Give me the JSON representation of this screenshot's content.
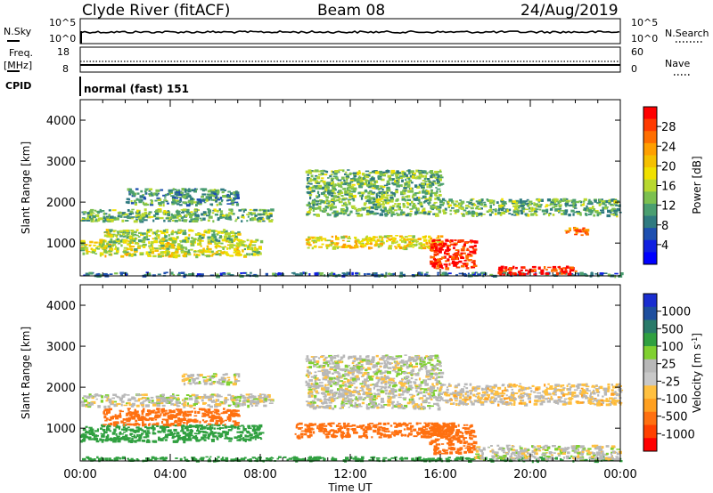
{
  "header": {
    "station": "Clyde River (fitACF)",
    "beam": "Beam 08",
    "date": "24/Aug/2019"
  },
  "panels": {
    "nsky": {
      "left_label": "N.Sky",
      "left_ticks": [
        "10^5",
        "10^0"
      ],
      "right_label": "N.Search",
      "right_ticks": [
        "10^5",
        "10^0"
      ]
    },
    "freq": {
      "left_label_1": "Freq.",
      "left_label_2": "[MHz]",
      "left_ticks": [
        "18",
        "8"
      ],
      "right_label": "Nave",
      "right_ticks": [
        "60",
        "0"
      ]
    },
    "cpid": {
      "label": "CPID",
      "mode": "normal (fast) 151"
    }
  },
  "colorbars": {
    "power": {
      "title": "Power [dB]",
      "ticks": [
        "28",
        "24",
        "20",
        "16",
        "12",
        "8",
        "4"
      ],
      "colors": [
        "#ff0000",
        "#ff3a00",
        "#ff6e00",
        "#ff9f00",
        "#f5c000",
        "#f0e000",
        "#b8d830",
        "#7cc050",
        "#4a9e70",
        "#2f7a80",
        "#1e4fb0",
        "#1020e0",
        "#0000ff"
      ]
    },
    "velocity": {
      "title": "Velocity [m s",
      "title_sup": "-1",
      "title_end": "]",
      "ticks": [
        "1000",
        "500",
        "100",
        "25",
        "-25",
        "-100",
        "-500",
        "-1000"
      ],
      "colors": [
        "#1a2ed0",
        "#1e4f9e",
        "#2a7a6a",
        "#30a040",
        "#80d030",
        "#b8b8b8",
        "#c8c8c8",
        "#ffc040",
        "#ffa020",
        "#ff7010",
        "#ff4000",
        "#ff0000"
      ]
    }
  },
  "chart_data": [
    {
      "type": "heatmap",
      "title": "",
      "ylabel": "Slant Range [km]",
      "xlabel": "",
      "yticks": [
        "1000",
        "2000",
        "3000",
        "4000"
      ],
      "ylim": [
        200,
        4500
      ],
      "xlim_hours": [
        0,
        24
      ],
      "colorbar": "Power [dB]",
      "regions": [
        {
          "x": [
            0,
            24
          ],
          "y": [
            220,
            300
          ],
          "value": 8
        },
        {
          "x": [
            0,
            8
          ],
          "y": [
            700,
            1100
          ],
          "value": 16
        },
        {
          "x": [
            1,
            7
          ],
          "y": [
            1050,
            1350
          ],
          "value": 14
        },
        {
          "x": [
            0,
            8.5
          ],
          "y": [
            1550,
            1850
          ],
          "value": 12
        },
        {
          "x": [
            2,
            7
          ],
          "y": [
            1950,
            2350
          ],
          "value": 10
        },
        {
          "x": [
            10,
            16
          ],
          "y": [
            900,
            1200
          ],
          "value": 18
        },
        {
          "x": [
            10,
            16
          ],
          "y": [
            1700,
            2800
          ],
          "value": 12
        },
        {
          "x": [
            15.5,
            17.5
          ],
          "y": [
            400,
            1100
          ],
          "value": 28
        },
        {
          "x": [
            18.5,
            22
          ],
          "y": [
            250,
            450
          ],
          "value": 28
        },
        {
          "x": [
            21.5,
            22.5
          ],
          "y": [
            1200,
            1400
          ],
          "value": 24
        },
        {
          "x": [
            16,
            24
          ],
          "y": [
            1700,
            2100
          ],
          "value": 12
        }
      ]
    },
    {
      "type": "heatmap",
      "title": "",
      "ylabel": "Slant Range [km]",
      "xlabel": "Time UT",
      "yticks": [
        "1000",
        "2000",
        "3000",
        "4000"
      ],
      "xticks": [
        "00:00",
        "04:00",
        "08:00",
        "12:00",
        "16:00",
        "20:00",
        "00:00"
      ],
      "ylim": [
        200,
        4500
      ],
      "xlim_hours": [
        0,
        24
      ],
      "colorbar": "Velocity [m s^-1]",
      "regions": [
        {
          "x": [
            0,
            24
          ],
          "y": [
            220,
            320
          ],
          "value": 100
        },
        {
          "x": [
            0,
            8
          ],
          "y": [
            700,
            1100
          ],
          "value": 100
        },
        {
          "x": [
            1,
            7
          ],
          "y": [
            1100,
            1500
          ],
          "value": -500
        },
        {
          "x": [
            0,
            8.5
          ],
          "y": [
            1550,
            1850
          ],
          "value": 0
        },
        {
          "x": [
            4.5,
            7
          ],
          "y": [
            2100,
            2350
          ],
          "value": 0
        },
        {
          "x": [
            9.5,
            16.5
          ],
          "y": [
            800,
            1150
          ],
          "value": -500
        },
        {
          "x": [
            10,
            16
          ],
          "y": [
            1500,
            2800
          ],
          "value": 0
        },
        {
          "x": [
            15.5,
            17.5
          ],
          "y": [
            400,
            1100
          ],
          "value": -500
        },
        {
          "x": [
            17.5,
            24
          ],
          "y": [
            250,
            600
          ],
          "value": 0
        },
        {
          "x": [
            16,
            24
          ],
          "y": [
            1600,
            2100
          ],
          "value": -25
        }
      ]
    }
  ],
  "footer": {
    "xlabel": "Time UT",
    "xticks": [
      "00:00",
      "04:00",
      "08:00",
      "12:00",
      "16:00",
      "20:00",
      "00:00"
    ]
  }
}
